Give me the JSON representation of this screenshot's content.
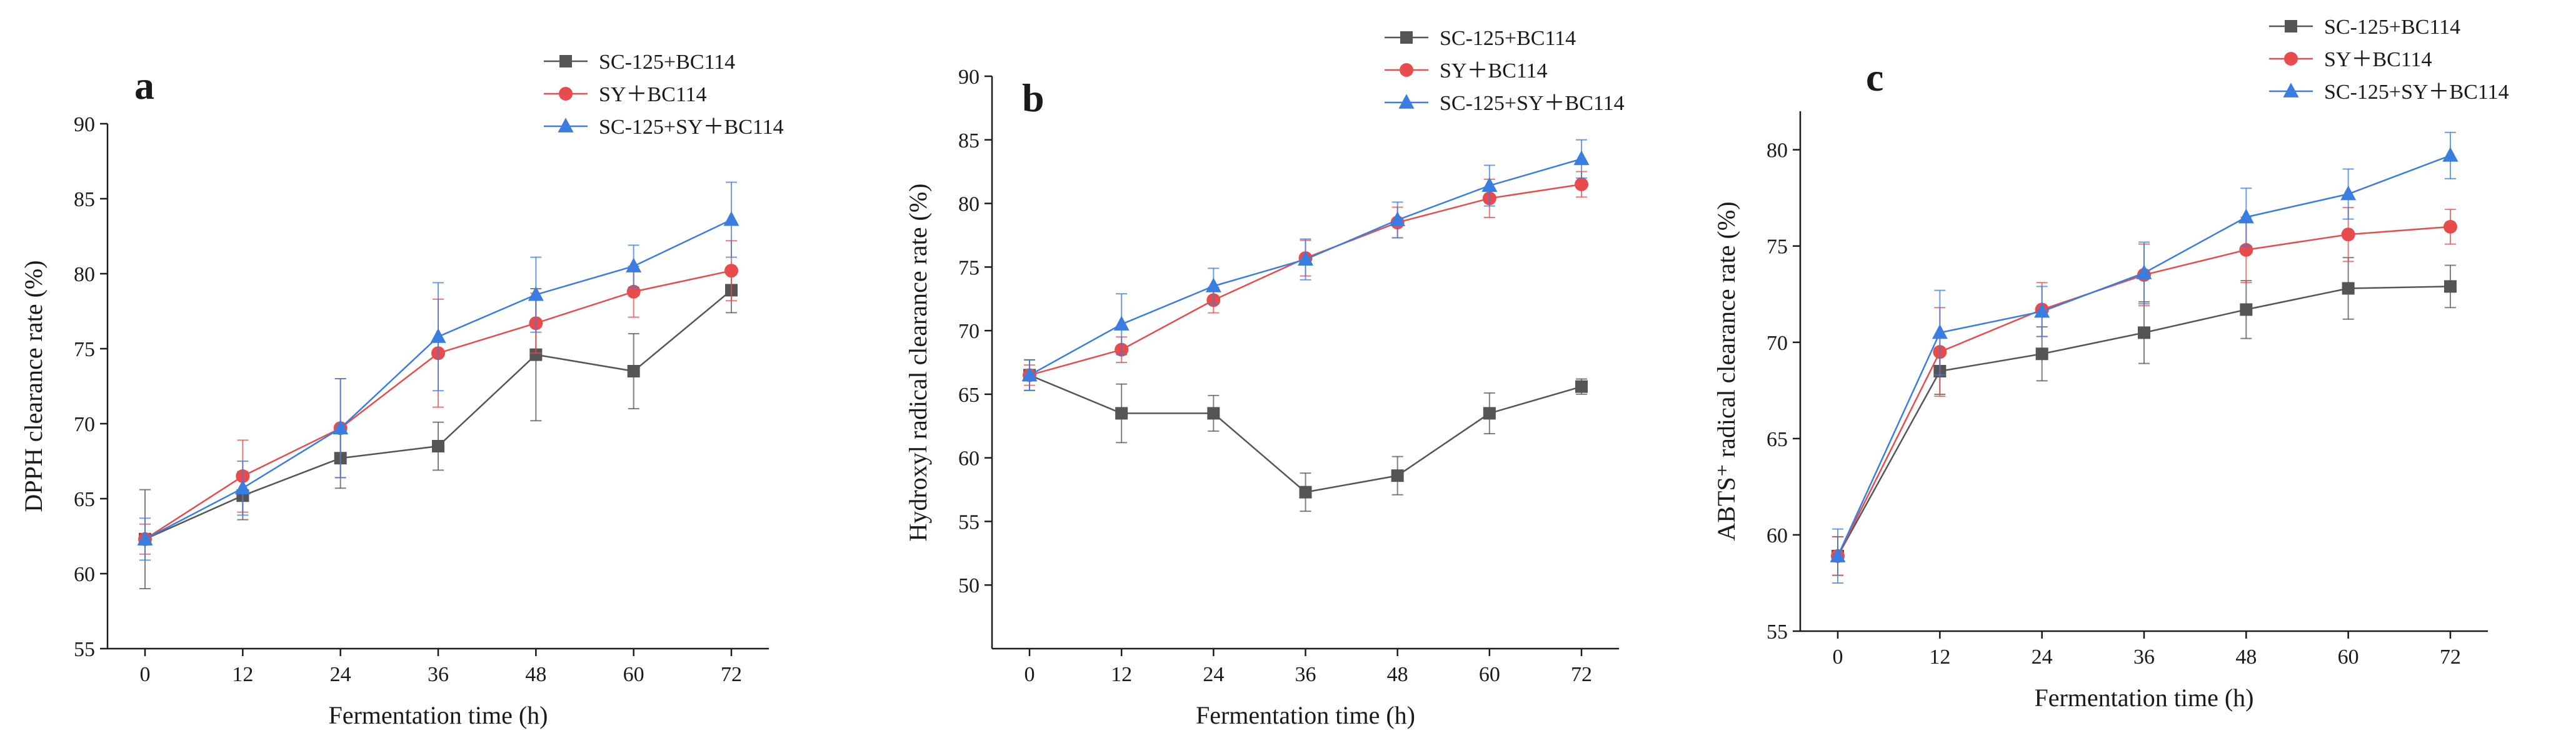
{
  "chart_data": [
    {
      "type": "line",
      "panel_label": "a",
      "xlabel": "Fermentation time (h)",
      "ylabel": "DPPH clearance rate (%)",
      "x": [
        0,
        12,
        24,
        36,
        48,
        60,
        72
      ],
      "xticks": [
        "0",
        "12",
        "24",
        "36",
        "48",
        "60",
        "72"
      ],
      "ylim": [
        55,
        90
      ],
      "yticks": [
        "55",
        "60",
        "65",
        "70",
        "75",
        "80",
        "85",
        "90"
      ],
      "legend_position": "top-right",
      "series": [
        {
          "name": "SC-125+BC114",
          "color": "#555555",
          "marker": "square",
          "values": [
            62.3,
            65.2,
            67.7,
            68.5,
            74.6,
            73.5,
            78.9
          ],
          "errors": [
            3.3,
            1.6,
            2.0,
            1.6,
            4.4,
            2.5,
            1.5
          ]
        },
        {
          "name": "SY＋BC114",
          "color": "#e84b4b",
          "marker": "circle",
          "values": [
            62.3,
            66.5,
            69.7,
            74.7,
            76.7,
            78.8,
            80.2
          ],
          "errors": [
            1.0,
            2.4,
            3.3,
            3.6,
            2.0,
            1.7,
            2.0
          ]
        },
        {
          "name": "SC-125+SY＋BC114",
          "color": "#3a7de0",
          "marker": "triangle",
          "values": [
            62.3,
            65.7,
            69.7,
            75.8,
            78.6,
            80.5,
            83.6
          ],
          "errors": [
            1.4,
            1.8,
            3.3,
            3.6,
            2.5,
            1.4,
            2.5
          ]
        }
      ]
    },
    {
      "type": "line",
      "panel_label": "b",
      "xlabel": "Fermentation time (h)",
      "ylabel": "Hydroxyl radical clearance rate (%)",
      "x": [
        0,
        12,
        24,
        36,
        48,
        60,
        72
      ],
      "xticks": [
        "0",
        "12",
        "24",
        "36",
        "48",
        "60",
        "72"
      ],
      "ylim": [
        45,
        90
      ],
      "yticks": [
        "50",
        "55",
        "60",
        "65",
        "70",
        "75",
        "80",
        "85",
        "90"
      ],
      "legend_position": "top-right",
      "series": [
        {
          "name": "SC-125+BC114",
          "color": "#555555",
          "marker": "square",
          "values": [
            66.5,
            63.5,
            63.5,
            57.3,
            58.6,
            63.5,
            65.6
          ],
          "errors": [
            1.2,
            2.3,
            1.4,
            1.5,
            1.5,
            1.6,
            0.6
          ]
        },
        {
          "name": "SY＋BC114",
          "color": "#e84b4b",
          "marker": "circle",
          "values": [
            66.5,
            68.5,
            72.4,
            75.7,
            78.5,
            80.4,
            81.5
          ],
          "errors": [
            0.8,
            1.0,
            1.0,
            1.4,
            1.2,
            1.5,
            1.0
          ]
        },
        {
          "name": "SC-125+SY＋BC114",
          "color": "#3a7de0",
          "marker": "triangle",
          "values": [
            66.5,
            70.5,
            73.5,
            75.6,
            78.7,
            81.4,
            83.5
          ],
          "errors": [
            1.2,
            2.4,
            1.4,
            1.6,
            1.4,
            1.6,
            1.5
          ]
        }
      ]
    },
    {
      "type": "line",
      "panel_label": "c",
      "xlabel": "Fermentation time (h)",
      "ylabel": "ABTS⁺ radical clearance rate (%)",
      "x": [
        0,
        12,
        24,
        36,
        48,
        60,
        72
      ],
      "xticks": [
        "0",
        "12",
        "24",
        "36",
        "48",
        "60",
        "72"
      ],
      "ylim": [
        55,
        82
      ],
      "yticks": [
        "55",
        "60",
        "65",
        "70",
        "75",
        "80"
      ],
      "legend_position": "top-right",
      "series": [
        {
          "name": "SC-125+BC114",
          "color": "#555555",
          "marker": "square",
          "values": [
            58.9,
            68.5,
            69.4,
            70.5,
            71.7,
            72.8,
            72.9
          ],
          "errors": [
            1.0,
            1.2,
            1.4,
            1.6,
            1.5,
            1.6,
            1.1
          ]
        },
        {
          "name": "SY＋BC114",
          "color": "#e84b4b",
          "marker": "circle",
          "values": [
            58.9,
            69.5,
            71.7,
            73.5,
            74.8,
            75.6,
            76.0
          ],
          "errors": [
            1.0,
            2.3,
            1.4,
            1.6,
            1.7,
            1.4,
            0.9
          ]
        },
        {
          "name": "SC-125+SY＋BC114",
          "color": "#3a7de0",
          "marker": "triangle",
          "values": [
            58.9,
            70.5,
            71.6,
            73.6,
            76.5,
            77.7,
            79.7
          ],
          "errors": [
            1.4,
            2.2,
            1.3,
            1.6,
            1.5,
            1.3,
            1.2
          ]
        }
      ]
    }
  ]
}
